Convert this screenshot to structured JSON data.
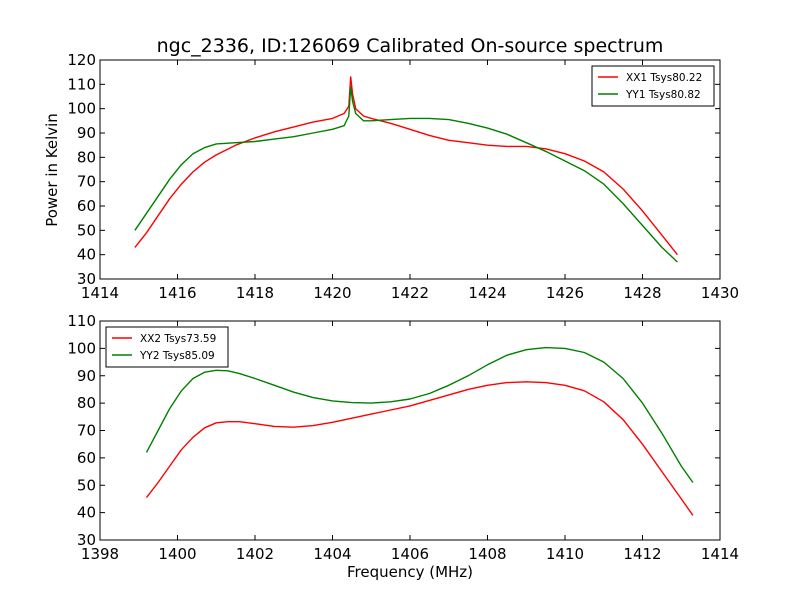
{
  "figure": {
    "title": "ngc_2336, ID:126069 Calibrated On-source spectrum",
    "ylabel": "Power in Kelvin",
    "xlabel": "Frequency (MHz)"
  },
  "chart_data": [
    {
      "type": "line",
      "title": "ngc_2336, ID:126069 Calibrated On-source spectrum",
      "xlabel": "",
      "ylabel": "Power in Kelvin",
      "xlim": [
        1414,
        1430
      ],
      "ylim": [
        30,
        120
      ],
      "xticks": [
        1414,
        1416,
        1418,
        1420,
        1422,
        1424,
        1426,
        1428,
        1430
      ],
      "yticks": [
        30,
        40,
        50,
        60,
        70,
        80,
        90,
        100,
        110,
        120
      ],
      "grid": false,
      "legend": "top-right",
      "series": [
        {
          "name": "XX1 Tsys80.22",
          "color": "#ff0000",
          "x": [
            1414.9,
            1415.2,
            1415.5,
            1415.8,
            1416.1,
            1416.4,
            1416.7,
            1417.0,
            1417.5,
            1418.0,
            1418.5,
            1419.0,
            1419.5,
            1420.0,
            1420.3,
            1420.42,
            1420.47,
            1420.52,
            1420.6,
            1420.8,
            1421.0,
            1421.5,
            1422.0,
            1422.5,
            1423.0,
            1423.5,
            1424.0,
            1424.5,
            1425.0,
            1425.5,
            1426.0,
            1426.5,
            1427.0,
            1427.5,
            1428.0,
            1428.5,
            1428.9
          ],
          "y": [
            43,
            49,
            56,
            63,
            69,
            74,
            78,
            81,
            85,
            88,
            90.5,
            92.5,
            94.5,
            96,
            98,
            101,
            113,
            106,
            100,
            97,
            96,
            94,
            91.5,
            89,
            87,
            86,
            85,
            84.5,
            84.5,
            83.5,
            81.5,
            78.5,
            74,
            67,
            58,
            48,
            40
          ]
        },
        {
          "name": "YY1 Tsys80.82",
          "color": "#008000",
          "x": [
            1414.9,
            1415.2,
            1415.5,
            1415.8,
            1416.1,
            1416.4,
            1416.7,
            1417.0,
            1417.5,
            1418.0,
            1418.5,
            1419.0,
            1419.5,
            1420.0,
            1420.3,
            1420.42,
            1420.47,
            1420.52,
            1420.6,
            1420.8,
            1421.0,
            1421.5,
            1422.0,
            1422.5,
            1423.0,
            1423.5,
            1424.0,
            1424.5,
            1425.0,
            1425.5,
            1426.0,
            1426.5,
            1427.0,
            1427.5,
            1428.0,
            1428.5,
            1428.9
          ],
          "y": [
            50,
            57,
            64,
            71,
            77,
            81.5,
            84,
            85.5,
            86,
            86.5,
            87.5,
            88.5,
            90,
            91.5,
            93,
            97,
            109,
            103,
            98,
            95,
            95,
            95.5,
            96,
            96,
            95.5,
            94,
            92,
            89.5,
            86,
            82.5,
            78.5,
            74.5,
            69,
            61,
            52,
            43,
            37
          ]
        }
      ]
    },
    {
      "type": "line",
      "title": "",
      "xlabel": "Frequency (MHz)",
      "ylabel": "",
      "xlim": [
        1398,
        1414
      ],
      "ylim": [
        30,
        110
      ],
      "xticks": [
        1398,
        1400,
        1402,
        1404,
        1406,
        1408,
        1410,
        1412,
        1414
      ],
      "yticks": [
        30,
        40,
        50,
        60,
        70,
        80,
        90,
        100,
        110
      ],
      "grid": false,
      "legend": "top-left",
      "series": [
        {
          "name": "XX2 Tsys73.59",
          "color": "#ff0000",
          "x": [
            1399.2,
            1399.5,
            1399.8,
            1400.1,
            1400.4,
            1400.7,
            1401.0,
            1401.3,
            1401.6,
            1402.0,
            1402.5,
            1403.0,
            1403.5,
            1404.0,
            1404.5,
            1405.0,
            1405.5,
            1406.0,
            1406.5,
            1407.0,
            1407.5,
            1408.0,
            1408.5,
            1409.0,
            1409.5,
            1410.0,
            1410.5,
            1411.0,
            1411.5,
            1412.0,
            1412.5,
            1413.0,
            1413.3
          ],
          "y": [
            45.5,
            51,
            57,
            63,
            67.5,
            71,
            72.8,
            73.2,
            73.2,
            72.5,
            71.5,
            71.2,
            71.8,
            73,
            74.5,
            76,
            77.5,
            79,
            81,
            83,
            85,
            86.5,
            87.5,
            87.8,
            87.5,
            86.5,
            84.5,
            80.5,
            74,
            65,
            55,
            45,
            39
          ]
        },
        {
          "name": "YY2 Tsys85.09",
          "color": "#008000",
          "x": [
            1399.2,
            1399.5,
            1399.8,
            1400.1,
            1400.4,
            1400.7,
            1401.0,
            1401.3,
            1401.6,
            1402.0,
            1402.5,
            1403.0,
            1403.5,
            1404.0,
            1404.5,
            1405.0,
            1405.5,
            1406.0,
            1406.5,
            1407.0,
            1407.5,
            1408.0,
            1408.5,
            1409.0,
            1409.5,
            1410.0,
            1410.5,
            1411.0,
            1411.5,
            1412.0,
            1412.5,
            1413.0,
            1413.3
          ],
          "y": [
            62,
            70,
            78,
            84.5,
            89,
            91.3,
            92,
            91.8,
            90.8,
            89,
            86.5,
            84,
            82,
            80.8,
            80.2,
            80,
            80.5,
            81.5,
            83.5,
            86.5,
            90,
            94,
            97.5,
            99.5,
            100.3,
            100,
            98.5,
            95,
            89,
            80,
            69,
            57,
            51
          ]
        }
      ]
    }
  ]
}
